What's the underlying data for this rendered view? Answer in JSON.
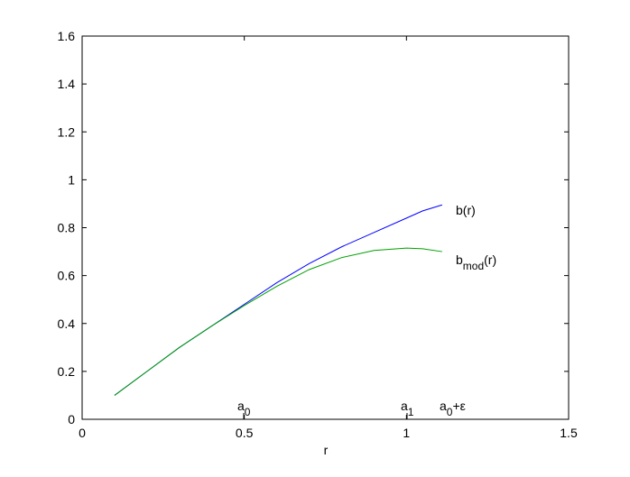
{
  "chart_data": {
    "type": "line",
    "x_label": "r",
    "x": [
      0.1,
      0.2,
      0.3,
      0.4,
      0.5,
      0.6,
      0.7,
      0.8,
      0.9,
      1.0,
      1.05,
      1.11
    ],
    "series": [
      {
        "name": "b(r)",
        "color": "#0000ff",
        "values": [
          0.1,
          0.2,
          0.3,
          0.39,
          0.48,
          0.57,
          0.65,
          0.72,
          0.78,
          0.84,
          0.87,
          0.895
        ]
      },
      {
        "name": "b_mod(r)",
        "color": "#00a000",
        "values": [
          0.1,
          0.2,
          0.3,
          0.39,
          0.475,
          0.555,
          0.625,
          0.675,
          0.705,
          0.715,
          0.712,
          0.7
        ]
      }
    ],
    "series_labels": [
      [
        {
          "text": "b(r)"
        }
      ],
      [
        {
          "text": "b"
        },
        {
          "text": "mod",
          "sub": true
        },
        {
          "text": "(r)"
        }
      ]
    ],
    "annotations": [
      [
        {
          "text": "a"
        },
        {
          "text": "0",
          "sub": true
        }
      ],
      [
        {
          "text": "a"
        },
        {
          "text": "1",
          "sub": true
        }
      ],
      [
        {
          "text": "a"
        },
        {
          "text": "0",
          "sub": true
        },
        {
          "text": "+ε"
        }
      ]
    ],
    "xlim": [
      0,
      1.5
    ],
    "xticks": [
      0,
      0.5,
      1,
      1.5
    ],
    "ylim": [
      0,
      1.6
    ],
    "yticks": [
      0,
      0.2,
      0.4,
      0.6,
      0.8,
      1,
      1.2,
      1.4,
      1.6
    ],
    "grid": false
  }
}
